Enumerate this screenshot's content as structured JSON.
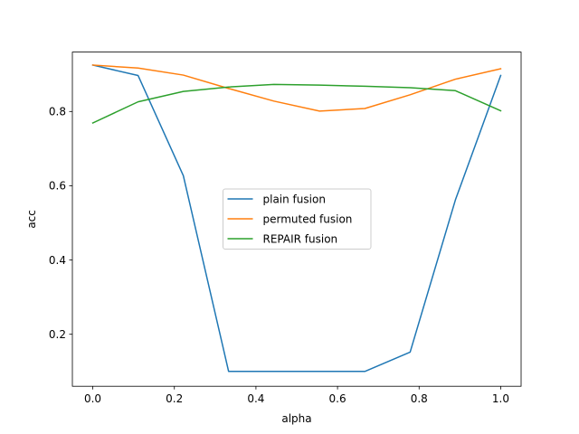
{
  "chart_data": {
    "type": "line",
    "xlabel": "alpha",
    "ylabel": "acc",
    "xlim": [
      -0.05,
      1.05
    ],
    "ylim": [
      0.06,
      0.96
    ],
    "xticks": [
      0.0,
      0.2,
      0.4,
      0.6,
      0.8,
      1.0
    ],
    "xtick_labels": [
      "0.0",
      "0.2",
      "0.4",
      "0.6",
      "0.8",
      "1.0"
    ],
    "yticks": [
      0.2,
      0.4,
      0.6,
      0.8
    ],
    "ytick_labels": [
      "0.2",
      "0.4",
      "0.6",
      "0.8"
    ],
    "grid": false,
    "legend_position": "center",
    "x": [
      0.0,
      0.111,
      0.222,
      0.333,
      0.444,
      0.556,
      0.667,
      0.778,
      0.889,
      1.0
    ],
    "series": [
      {
        "name": "plain fusion",
        "color": "#1f77b4",
        "values": [
          0.925,
          0.897,
          0.627,
          0.1,
          0.1,
          0.1,
          0.1,
          0.152,
          0.562,
          0.897
        ]
      },
      {
        "name": "permuted fusion",
        "color": "#ff7f0e",
        "values": [
          0.925,
          0.917,
          0.898,
          0.862,
          0.828,
          0.801,
          0.808,
          0.845,
          0.887,
          0.915
        ]
      },
      {
        "name": "REPAIR fusion",
        "color": "#2ca02c",
        "values": [
          0.769,
          0.826,
          0.854,
          0.866,
          0.873,
          0.871,
          0.868,
          0.864,
          0.856,
          0.802
        ]
      }
    ]
  }
}
